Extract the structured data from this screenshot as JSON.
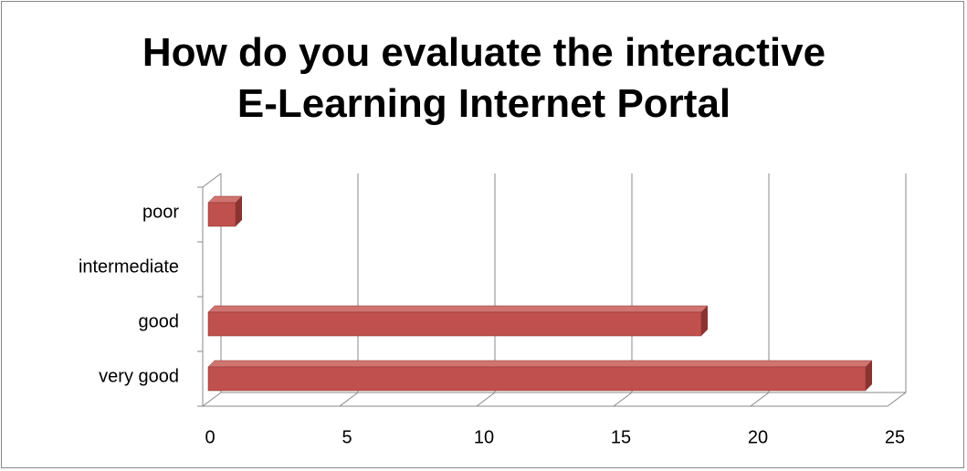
{
  "chart_data": {
    "type": "bar",
    "orientation": "horizontal",
    "title": "How do you evaluate the interactive E-Learning Internet Portal",
    "categories": [
      "very good",
      "good",
      "intermediate",
      "poor"
    ],
    "values": [
      24,
      18,
      0,
      1
    ],
    "color": "#c0504d",
    "xlim": [
      0,
      25
    ],
    "xticks": [
      0,
      5,
      10,
      15,
      20,
      25
    ],
    "grid": true
  }
}
